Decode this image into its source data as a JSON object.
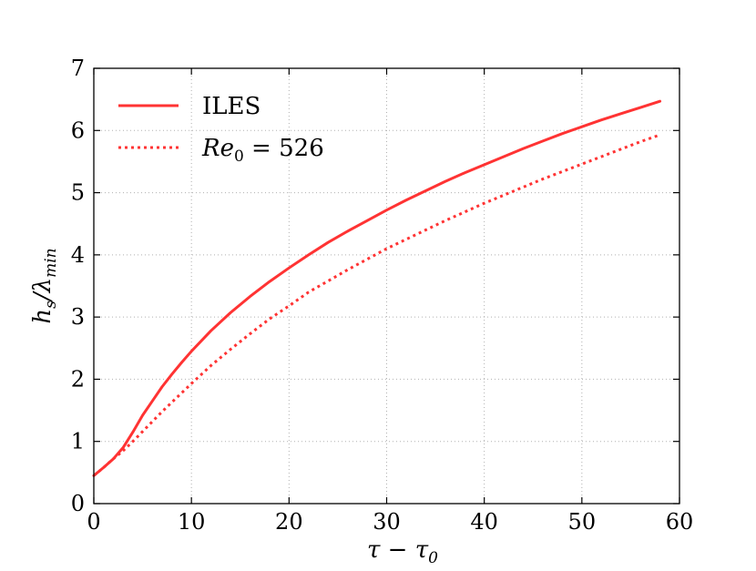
{
  "chart_data": {
    "type": "line",
    "title": "",
    "xlabel": "τ − τ₀",
    "ylabel": "h_s/λ_min",
    "xlim": [
      0,
      60
    ],
    "ylim": [
      0,
      7
    ],
    "xticks": [
      0,
      10,
      20,
      30,
      40,
      50,
      60
    ],
    "yticks": [
      0,
      1,
      2,
      3,
      4,
      5,
      6,
      7
    ],
    "grid": true,
    "legend_position": "top-left",
    "series": [
      {
        "name": "ILES",
        "style": "solid",
        "color": "#ff3333",
        "x": [
          0,
          1,
          2,
          3,
          4,
          5,
          6,
          7,
          8,
          9,
          10,
          12,
          14,
          16,
          18,
          20,
          22,
          24,
          26,
          28,
          30,
          32,
          34,
          36,
          38,
          40,
          42,
          44,
          46,
          48,
          50,
          52,
          54,
          56,
          58
        ],
        "y": [
          0.45,
          0.58,
          0.72,
          0.9,
          1.15,
          1.42,
          1.65,
          1.88,
          2.08,
          2.27,
          2.45,
          2.78,
          3.07,
          3.33,
          3.57,
          3.79,
          4.0,
          4.2,
          4.38,
          4.55,
          4.72,
          4.88,
          5.03,
          5.18,
          5.32,
          5.45,
          5.58,
          5.71,
          5.83,
          5.95,
          6.06,
          6.17,
          6.27,
          6.37,
          6.47
        ]
      },
      {
        "name": "Re₀ = 526",
        "style": "dotted",
        "color": "#ff3333",
        "x": [
          0,
          1,
          2,
          3,
          4,
          5,
          6,
          7,
          8,
          9,
          10,
          12,
          14,
          16,
          18,
          20,
          22,
          24,
          26,
          28,
          30,
          32,
          34,
          36,
          38,
          40,
          42,
          44,
          46,
          48,
          50,
          52,
          54,
          56,
          58
        ],
        "y": [
          0.45,
          0.58,
          0.72,
          0.85,
          1.0,
          1.16,
          1.32,
          1.48,
          1.63,
          1.78,
          1.93,
          2.22,
          2.48,
          2.73,
          2.97,
          3.18,
          3.4,
          3.58,
          3.76,
          3.93,
          4.1,
          4.25,
          4.4,
          4.55,
          4.69,
          4.83,
          4.96,
          5.09,
          5.22,
          5.34,
          5.46,
          5.58,
          5.7,
          5.82,
          5.93
        ]
      }
    ]
  },
  "legend": {
    "iles_label": "ILES",
    "re_label_main": "Re",
    "re_label_sub": "0",
    "re_label_rest": " = 526"
  },
  "axes": {
    "xlabel_main": "τ − τ",
    "xlabel_sub": "0",
    "ylabel_main": "h",
    "ylabel_sub1": "s",
    "ylabel_mid": "/λ",
    "ylabel_sub2": "min"
  }
}
